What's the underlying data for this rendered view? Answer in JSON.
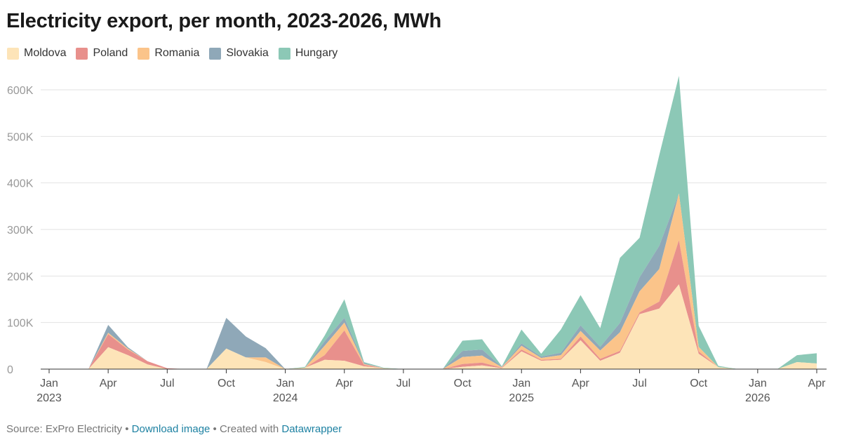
{
  "title": "Electricity export, per month, 2023-2026, MWh",
  "footer": {
    "source": "Source: ExPro Electricity",
    "sep1": " • ",
    "download": "Download image",
    "sep2": " • Created with ",
    "datawrapper": "Datawrapper"
  },
  "chart_data": {
    "type": "area",
    "stacked": true,
    "title": "Electricity export, per month, 2023-2026, MWh",
    "xlabel": "",
    "ylabel": "",
    "ylim": [
      0,
      650000
    ],
    "grid": true,
    "legend_position": "top-left",
    "y_ticks": [
      {
        "value": 0,
        "label": "0"
      },
      {
        "value": 100000,
        "label": "100K"
      },
      {
        "value": 200000,
        "label": "200K"
      },
      {
        "value": 300000,
        "label": "300K"
      },
      {
        "value": 400000,
        "label": "400K"
      },
      {
        "value": 500000,
        "label": "500K"
      },
      {
        "value": 600000,
        "label": "600K"
      }
    ],
    "x_ticks": [
      {
        "index": 0,
        "label": "Jan",
        "year": "2023"
      },
      {
        "index": 3,
        "label": "Apr",
        "year": ""
      },
      {
        "index": 6,
        "label": "Jul",
        "year": ""
      },
      {
        "index": 9,
        "label": "Oct",
        "year": ""
      },
      {
        "index": 12,
        "label": "Jan",
        "year": "2024"
      },
      {
        "index": 15,
        "label": "Apr",
        "year": ""
      },
      {
        "index": 18,
        "label": "Jul",
        "year": ""
      },
      {
        "index": 21,
        "label": "Oct",
        "year": ""
      },
      {
        "index": 24,
        "label": "Jan",
        "year": "2025"
      },
      {
        "index": 27,
        "label": "Apr",
        "year": ""
      },
      {
        "index": 30,
        "label": "Jul",
        "year": ""
      },
      {
        "index": 33,
        "label": "Oct",
        "year": ""
      },
      {
        "index": 36,
        "label": "Jan",
        "year": "2026"
      },
      {
        "index": 39,
        "label": "Apr",
        "year": ""
      }
    ],
    "x": [
      "2023-01",
      "2023-02",
      "2023-03",
      "2023-04",
      "2023-05",
      "2023-06",
      "2023-07",
      "2023-08",
      "2023-09",
      "2023-10",
      "2023-11",
      "2023-12",
      "2024-01",
      "2024-02",
      "2024-03",
      "2024-04",
      "2024-05",
      "2024-06",
      "2024-07",
      "2024-08",
      "2024-09",
      "2024-10",
      "2024-11",
      "2024-12",
      "2025-01",
      "2025-02",
      "2025-03",
      "2025-04",
      "2025-05",
      "2025-06",
      "2025-07",
      "2025-08",
      "2025-09",
      "2025-10",
      "2025-11",
      "2025-12",
      "2026-01",
      "2026-02",
      "2026-03",
      "2026-04"
    ],
    "series": [
      {
        "name": "Moldova",
        "color": "#fde4b8",
        "values": [
          0,
          0,
          0,
          47000,
          30000,
          10000,
          0,
          0,
          0,
          44000,
          25000,
          15000,
          0,
          3000,
          20000,
          18000,
          6000,
          2000,
          0,
          0,
          0,
          5000,
          8000,
          2000,
          38000,
          18000,
          20000,
          62000,
          18000,
          35000,
          118000,
          130000,
          182000,
          33000,
          4000,
          0,
          0,
          0,
          15000,
          12000
        ]
      },
      {
        "name": "Poland",
        "color": "#e8908c",
        "values": [
          0,
          0,
          0,
          28000,
          12000,
          7000,
          2000,
          0,
          0,
          0,
          0,
          0,
          0,
          0,
          10000,
          65000,
          3000,
          0,
          0,
          0,
          0,
          6000,
          6000,
          1000,
          4000,
          2000,
          2000,
          8000,
          4000,
          4000,
          4000,
          15000,
          95000,
          5000,
          0,
          0,
          0,
          0,
          0,
          0
        ]
      },
      {
        "name": "Romania",
        "color": "#fbc48a",
        "values": [
          0,
          0,
          0,
          3000,
          2000,
          0,
          0,
          0,
          0,
          0,
          0,
          10000,
          0,
          0,
          20000,
          17000,
          2000,
          0,
          0,
          0,
          0,
          15000,
          15000,
          1000,
          8000,
          4000,
          8000,
          12000,
          18000,
          40000,
          45000,
          70000,
          100000,
          10000,
          0,
          0,
          0,
          0,
          0,
          0
        ]
      },
      {
        "name": "Slovakia",
        "color": "#8fa8b8",
        "values": [
          0,
          0,
          0,
          17000,
          3000,
          0,
          0,
          0,
          0,
          66000,
          45000,
          20000,
          0,
          0,
          10000,
          10000,
          2000,
          0,
          0,
          0,
          0,
          13000,
          13000,
          1000,
          5000,
          3000,
          5000,
          12000,
          8000,
          20000,
          30000,
          50000,
          0,
          0,
          0,
          0,
          0,
          0,
          0,
          0
        ]
      },
      {
        "name": "Hungary",
        "color": "#8cc8b6",
        "values": [
          0,
          0,
          0,
          0,
          0,
          0,
          0,
          0,
          0,
          0,
          0,
          0,
          0,
          2000,
          12000,
          40000,
          2000,
          1000,
          0,
          0,
          0,
          22000,
          22000,
          1000,
          30000,
          6000,
          50000,
          65000,
          40000,
          140000,
          85000,
          195000,
          253000,
          45000,
          3000,
          0,
          0,
          0,
          15000,
          22000
        ]
      }
    ]
  }
}
